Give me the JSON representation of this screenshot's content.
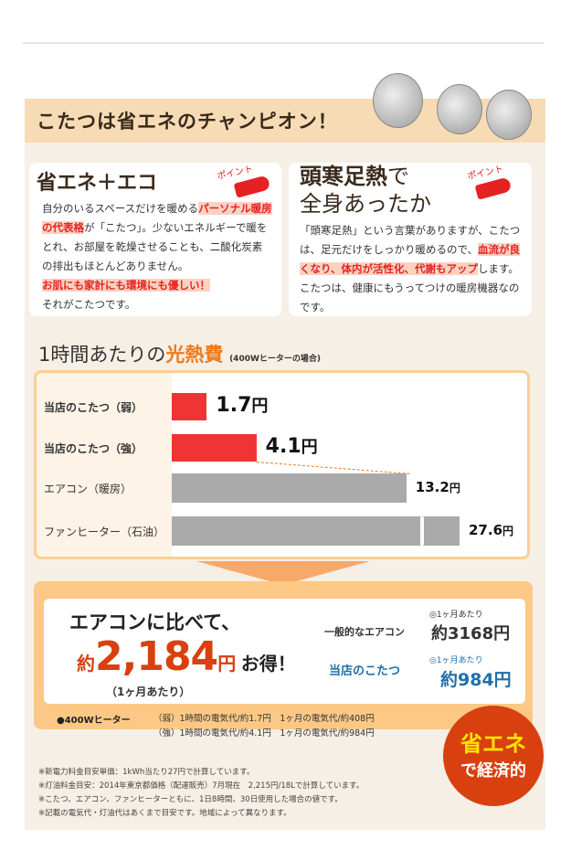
{
  "header": {
    "title": "こたつは省エネのチャンピオン！"
  },
  "card_left": {
    "heading": "省エネ＋エコ",
    "point": "ポイント",
    "text1": "自分のいるスペースだけを暖める",
    "hl1": "パーソナル暖房の代表格",
    "text2": "が「こたつ」。少ないエネルギーで暖をとれ、お部屋を乾燥させることも、二酸化炭素の排出もほとんどありません。",
    "hl2": "お肌にも家計にも環境にも優しい！",
    "text3": "それがこたつです。"
  },
  "card_right": {
    "heading_bold": "頭寒足熱",
    "heading_tail": "で",
    "heading2": "全身あったか",
    "point": "ポイント",
    "text1": "「頭寒足熱」という言葉がありますが、こたつは、足元だけをしっかり暖めるので、",
    "hl1": "血流が良くなり、体内が活性化、代謝もアップ",
    "text2": "します。こたつは、健康にもうってつけの暖房機器なのです。"
  },
  "cost": {
    "title_a": "1時間あたりの",
    "title_b": "光熱費",
    "subtitle": "(400Wヒーターの場合)"
  },
  "chart_data": {
    "type": "bar",
    "orientation": "horizontal",
    "title": "1時間あたりの光熱費",
    "unit": "円",
    "categories": [
      "当店のこたつ（弱）",
      "当店のこたつ（強）",
      "エアコン（暖房）",
      "ファンヒーター（石油）"
    ],
    "values": [
      1.7,
      4.1,
      13.2,
      27.6
    ],
    "labels": [
      "1.7",
      "4.1",
      "13.2",
      "27.6"
    ],
    "colors": [
      "#f03434",
      "#f03434",
      "#aaaaaa",
      "#aaaaaa"
    ],
    "broken_axis_last": true
  },
  "savings": {
    "lead": "エアコンに比べて、",
    "prefix": "約",
    "amount": "2,184",
    "yen": "円",
    "suffix": "お得！",
    "period": "（1ヶ月あたり）",
    "aircon_label": "一般的なエアコン",
    "aircon_per": "◎1ヶ月あたり",
    "aircon_value": "約3168円",
    "kotatsu_label": "当店のこたつ",
    "kotatsu_per": "◎1ヶ月あたり",
    "kotatsu_value": "約984円"
  },
  "heater": {
    "label": "●400Wヒーター",
    "row1": "（弱）1時間の電気代/約1.7円　1ヶ月の電気代/約408円",
    "row2": "（強）1時間の電気代/約4.1円　1ヶ月の電気代/約984円"
  },
  "badge": {
    "line1": "省エネ",
    "line2": "で経済的"
  },
  "notes": [
    "※新電力料金目安単価：1kWh当たり27円で計算しています。",
    "※灯油料金目安：2014年東京都価格（配達販売）7月現在　2,215円/18Lで計算しています。",
    "※こたつ、エアコン、ファンヒーターともに、1日8時間、30日使用した場合の値です。",
    "※記載の電気代・灯油代はあくまで目安です。地域によって異なります。"
  ],
  "colors": {
    "accent": "#f07a1a",
    "red": "#e52222",
    "blue": "#1f6fa8",
    "badge": "#d8400f"
  }
}
